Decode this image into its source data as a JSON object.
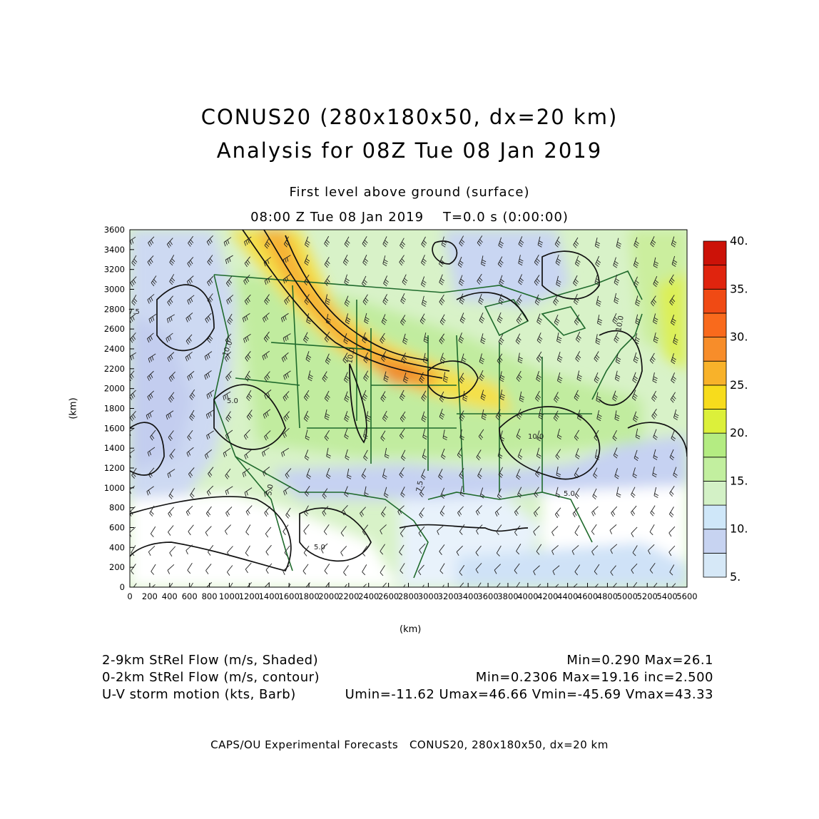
{
  "header": {
    "title_line1": "CONUS20 (280x180x50, dx=20 km)",
    "title_line2": "Analysis for 08Z Tue 08 Jan 2019",
    "level": "First level above ground (surface)",
    "time": "08:00 Z Tue 08 Jan 2019    T=0.0 s (0:00:00)"
  },
  "axes": {
    "x_label": "(km)",
    "y_label": "(km)",
    "x_ticks": [
      "0",
      "200",
      "400",
      "600",
      "800",
      "1000",
      "1200",
      "1400",
      "1600",
      "1800",
      "2000",
      "2200",
      "2400",
      "2600",
      "2800",
      "3000",
      "3200",
      "3400",
      "3600",
      "3800",
      "4000",
      "4200",
      "4400",
      "4600",
      "4800",
      "5000",
      "5200",
      "5400",
      "5600"
    ],
    "y_ticks": [
      "0",
      "200",
      "400",
      "600",
      "800",
      "1000",
      "1200",
      "1400",
      "1600",
      "1800",
      "2000",
      "2200",
      "2400",
      "2600",
      "2800",
      "3000",
      "3200",
      "3400",
      "3600"
    ],
    "x_range": [
      0,
      5600
    ],
    "y_range": [
      0,
      3600
    ]
  },
  "colorbar": {
    "labels": [
      "5.",
      "10.",
      "15.",
      "20.",
      "25.",
      "30.",
      "35.",
      "40."
    ],
    "levels": [
      5,
      7.5,
      10,
      12.5,
      15,
      17.5,
      20,
      22.5,
      25,
      27.5,
      30,
      32.5,
      35,
      37.5,
      40
    ],
    "colors": [
      "#d6e8f7",
      "#c7d3f1",
      "#cfe7f9",
      "#d3f1c6",
      "#c2ef9f",
      "#b4ec82",
      "#dcf03a",
      "#f7dc1c",
      "#f8b22a",
      "#f78d2a",
      "#f96a1c",
      "#f04a14",
      "#e0240e",
      "#cc1208"
    ]
  },
  "contour_labels": [
    "10.0",
    "10.0",
    "10.0",
    "5.0",
    "5.0",
    "5.0",
    "5.0",
    "7.5",
    "10.0",
    "7.5"
  ],
  "info": {
    "line1_left": "2-9km StRel Flow (m/s, Shaded)",
    "line1_right": "Min=0.290 Max=26.1",
    "line2_left": "0-2km StRel Flow (m/s, contour)",
    "line2_right": "Min=0.2306 Max=19.16 inc=2.500",
    "line3_left": "U-V storm motion (kts, Barb)",
    "line3_right": "Umin=-11.62 Umax=46.66 Vmin=-45.69 Vmax=43.33"
  },
  "footer": "CAPS/OU Experimental Forecasts   CONUS20, 280x180x50, dx=20 km"
}
